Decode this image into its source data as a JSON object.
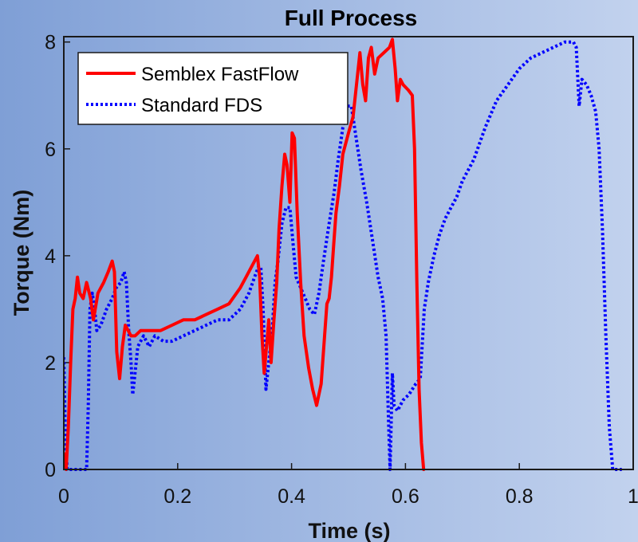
{
  "chart_data": {
    "type": "line",
    "title": "Full Process",
    "xlabel": "Time (s)",
    "ylabel": "Torque (Nm)",
    "xlim": [
      0,
      1
    ],
    "ylim": [
      0,
      8.1
    ],
    "xticks": [
      "0",
      "0.2",
      "0.4",
      "0.6",
      "0.8",
      "1"
    ],
    "yticks": [
      "0",
      "2",
      "4",
      "6",
      "8"
    ],
    "legend_position": "top-left",
    "background_gradient": [
      "#7f9fd6",
      "#c2d2ee"
    ],
    "series": [
      {
        "name": "Semblex FastFlow",
        "color": "#ff0000",
        "style": "solid",
        "points": [
          [
            0.0,
            0.3
          ],
          [
            0.004,
            0.0
          ],
          [
            0.008,
            0.8
          ],
          [
            0.012,
            2.0
          ],
          [
            0.016,
            3.0
          ],
          [
            0.02,
            3.2
          ],
          [
            0.024,
            3.6
          ],
          [
            0.028,
            3.3
          ],
          [
            0.034,
            3.2
          ],
          [
            0.04,
            3.5
          ],
          [
            0.047,
            3.2
          ],
          [
            0.052,
            2.8
          ],
          [
            0.06,
            3.3
          ],
          [
            0.07,
            3.5
          ],
          [
            0.078,
            3.7
          ],
          [
            0.085,
            3.9
          ],
          [
            0.089,
            3.7
          ],
          [
            0.093,
            2.2
          ],
          [
            0.098,
            1.7
          ],
          [
            0.103,
            2.3
          ],
          [
            0.108,
            2.7
          ],
          [
            0.113,
            2.6
          ],
          [
            0.118,
            2.5
          ],
          [
            0.125,
            2.5
          ],
          [
            0.135,
            2.6
          ],
          [
            0.15,
            2.6
          ],
          [
            0.17,
            2.6
          ],
          [
            0.19,
            2.7
          ],
          [
            0.21,
            2.8
          ],
          [
            0.23,
            2.8
          ],
          [
            0.25,
            2.9
          ],
          [
            0.27,
            3.0
          ],
          [
            0.29,
            3.1
          ],
          [
            0.31,
            3.4
          ],
          [
            0.32,
            3.6
          ],
          [
            0.33,
            3.8
          ],
          [
            0.34,
            4.0
          ],
          [
            0.344,
            3.6
          ],
          [
            0.348,
            2.5
          ],
          [
            0.352,
            1.8
          ],
          [
            0.356,
            2.3
          ],
          [
            0.36,
            2.8
          ],
          [
            0.364,
            2.0
          ],
          [
            0.369,
            2.8
          ],
          [
            0.374,
            3.5
          ],
          [
            0.378,
            4.5
          ],
          [
            0.383,
            5.3
          ],
          [
            0.388,
            5.9
          ],
          [
            0.392,
            5.7
          ],
          [
            0.397,
            5.0
          ],
          [
            0.401,
            6.3
          ],
          [
            0.405,
            6.2
          ],
          [
            0.41,
            4.8
          ],
          [
            0.416,
            3.5
          ],
          [
            0.422,
            2.5
          ],
          [
            0.43,
            1.9
          ],
          [
            0.437,
            1.5
          ],
          [
            0.444,
            1.2
          ],
          [
            0.452,
            1.6
          ],
          [
            0.458,
            2.5
          ],
          [
            0.462,
            3.1
          ],
          [
            0.466,
            3.2
          ],
          [
            0.47,
            3.6
          ],
          [
            0.474,
            4.2
          ],
          [
            0.478,
            4.8
          ],
          [
            0.484,
            5.3
          ],
          [
            0.49,
            5.9
          ],
          [
            0.5,
            6.3
          ],
          [
            0.508,
            6.6
          ],
          [
            0.514,
            7.2
          ],
          [
            0.52,
            7.8
          ],
          [
            0.525,
            7.2
          ],
          [
            0.53,
            6.9
          ],
          [
            0.535,
            7.7
          ],
          [
            0.54,
            7.9
          ],
          [
            0.546,
            7.4
          ],
          [
            0.552,
            7.7
          ],
          [
            0.562,
            7.8
          ],
          [
            0.572,
            7.9
          ],
          [
            0.577,
            8.05
          ],
          [
            0.582,
            7.5
          ],
          [
            0.586,
            6.9
          ],
          [
            0.591,
            7.3
          ],
          [
            0.596,
            7.2
          ],
          [
            0.605,
            7.1
          ],
          [
            0.612,
            7.0
          ],
          [
            0.616,
            6.0
          ],
          [
            0.62,
            3.5
          ],
          [
            0.624,
            1.5
          ],
          [
            0.628,
            0.5
          ],
          [
            0.632,
            0.0
          ]
        ]
      },
      {
        "name": "Standard FDS",
        "color": "#0000ff",
        "style": "dotted",
        "points": [
          [
            0.0,
            2.1
          ],
          [
            0.003,
            0.5
          ],
          [
            0.006,
            0.0
          ],
          [
            0.015,
            0.0
          ],
          [
            0.04,
            0.0
          ],
          [
            0.043,
            1.2
          ],
          [
            0.046,
            3.0
          ],
          [
            0.05,
            3.3
          ],
          [
            0.054,
            3.0
          ],
          [
            0.058,
            2.6
          ],
          [
            0.065,
            2.7
          ],
          [
            0.075,
            3.0
          ],
          [
            0.085,
            3.2
          ],
          [
            0.092,
            3.4
          ],
          [
            0.1,
            3.5
          ],
          [
            0.106,
            3.7
          ],
          [
            0.11,
            3.5
          ],
          [
            0.114,
            2.6
          ],
          [
            0.118,
            2.0
          ],
          [
            0.121,
            1.4
          ],
          [
            0.125,
            1.8
          ],
          [
            0.13,
            2.3
          ],
          [
            0.14,
            2.5
          ],
          [
            0.15,
            2.3
          ],
          [
            0.16,
            2.5
          ],
          [
            0.175,
            2.4
          ],
          [
            0.19,
            2.4
          ],
          [
            0.21,
            2.5
          ],
          [
            0.23,
            2.6
          ],
          [
            0.25,
            2.7
          ],
          [
            0.27,
            2.8
          ],
          [
            0.29,
            2.8
          ],
          [
            0.31,
            3.0
          ],
          [
            0.325,
            3.3
          ],
          [
            0.335,
            3.6
          ],
          [
            0.342,
            3.8
          ],
          [
            0.346,
            3.8
          ],
          [
            0.35,
            3.0
          ],
          [
            0.355,
            1.5
          ],
          [
            0.36,
            2.0
          ],
          [
            0.366,
            2.6
          ],
          [
            0.371,
            3.5
          ],
          [
            0.376,
            3.9
          ],
          [
            0.383,
            4.6
          ],
          [
            0.39,
            4.9
          ],
          [
            0.397,
            4.9
          ],
          [
            0.402,
            4.3
          ],
          [
            0.408,
            3.6
          ],
          [
            0.42,
            3.3
          ],
          [
            0.432,
            3.0
          ],
          [
            0.44,
            2.9
          ],
          [
            0.448,
            3.3
          ],
          [
            0.456,
            3.9
          ],
          [
            0.466,
            4.6
          ],
          [
            0.475,
            5.2
          ],
          [
            0.482,
            5.8
          ],
          [
            0.49,
            6.4
          ],
          [
            0.498,
            6.8
          ],
          [
            0.505,
            6.8
          ],
          [
            0.512,
            6.3
          ],
          [
            0.522,
            5.6
          ],
          [
            0.532,
            5.0
          ],
          [
            0.542,
            4.3
          ],
          [
            0.552,
            3.6
          ],
          [
            0.56,
            3.2
          ],
          [
            0.566,
            2.5
          ],
          [
            0.57,
            1.0
          ],
          [
            0.573,
            0.0
          ],
          [
            0.577,
            1.8
          ],
          [
            0.58,
            1.2
          ],
          [
            0.586,
            1.1
          ],
          [
            0.596,
            1.3
          ],
          [
            0.606,
            1.4
          ],
          [
            0.618,
            1.6
          ],
          [
            0.626,
            1.7
          ],
          [
            0.633,
            3.0
          ],
          [
            0.64,
            3.5
          ],
          [
            0.65,
            4.0
          ],
          [
            0.66,
            4.4
          ],
          [
            0.67,
            4.7
          ],
          [
            0.68,
            4.9
          ],
          [
            0.69,
            5.1
          ],
          [
            0.7,
            5.4
          ],
          [
            0.72,
            5.8
          ],
          [
            0.74,
            6.4
          ],
          [
            0.76,
            6.9
          ],
          [
            0.78,
            7.2
          ],
          [
            0.8,
            7.5
          ],
          [
            0.82,
            7.7
          ],
          [
            0.84,
            7.8
          ],
          [
            0.86,
            7.9
          ],
          [
            0.88,
            8.0
          ],
          [
            0.895,
            8.0
          ],
          [
            0.9,
            7.9
          ],
          [
            0.905,
            6.8
          ],
          [
            0.91,
            7.3
          ],
          [
            0.918,
            7.2
          ],
          [
            0.926,
            7.0
          ],
          [
            0.934,
            6.7
          ],
          [
            0.94,
            6.0
          ],
          [
            0.946,
            4.5
          ],
          [
            0.952,
            2.5
          ],
          [
            0.958,
            0.8
          ],
          [
            0.964,
            0.0
          ],
          [
            0.98,
            0.0
          ]
        ]
      }
    ]
  }
}
